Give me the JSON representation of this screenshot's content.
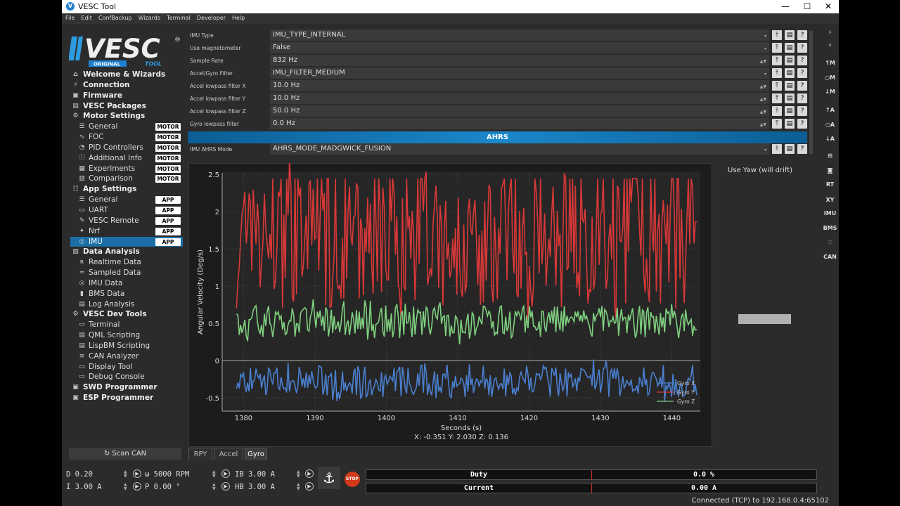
{
  "window": {
    "title": "VESC Tool",
    "logo_letter": "V",
    "minimize": "—",
    "maximize": "☐",
    "close": "✕"
  },
  "menu": [
    "File",
    "Edit",
    "ConfBackup",
    "Wizards",
    "Terminal",
    "Developer",
    "Help"
  ],
  "logo": {
    "text": "VESC",
    "reg": "®",
    "sub_left": "ORIGINAL",
    "sub_right": "TOOL"
  },
  "nav": [
    {
      "label": "Welcome & Wizards",
      "level": "top",
      "icon": "home-icon",
      "glyph": "⌂"
    },
    {
      "label": "Connection",
      "level": "top",
      "icon": "plug-icon",
      "glyph": "⚡"
    },
    {
      "label": "Firmware",
      "level": "top",
      "icon": "chip-icon",
      "glyph": "▣"
    },
    {
      "label": "VESC Packages",
      "level": "top",
      "icon": "package-icon",
      "glyph": "▤"
    },
    {
      "label": "Motor Settings",
      "level": "top",
      "icon": "motor-icon",
      "glyph": "⚙"
    },
    {
      "label": "General",
      "level": "sub",
      "icon": "sliders-icon",
      "glyph": "☰",
      "badge": "MOTOR"
    },
    {
      "label": "FOC",
      "level": "sub",
      "icon": "coil-icon",
      "glyph": "∿",
      "badge": "MOTOR"
    },
    {
      "label": "PID Controllers",
      "level": "sub",
      "icon": "gauge-icon",
      "glyph": "◔",
      "badge": "MOTOR"
    },
    {
      "label": "Additional Info",
      "level": "sub",
      "icon": "info-icon",
      "glyph": "ⓘ",
      "badge": "MOTOR"
    },
    {
      "label": "Experiments",
      "level": "sub",
      "icon": "flask-icon",
      "glyph": "▦",
      "badge": "MOTOR"
    },
    {
      "label": "Comparison",
      "level": "sub",
      "icon": "compare-icon",
      "glyph": "▥",
      "badge": "MOTOR"
    },
    {
      "label": "App Settings",
      "level": "top",
      "icon": "sliders-icon",
      "glyph": "☷"
    },
    {
      "label": "General",
      "level": "sub",
      "icon": "sliders-icon",
      "glyph": "☰",
      "badge": "APP"
    },
    {
      "label": "UART",
      "level": "sub",
      "icon": "uart-icon",
      "glyph": "▭",
      "badge": "APP"
    },
    {
      "label": "VESC Remote",
      "level": "sub",
      "icon": "remote-icon",
      "glyph": "✎",
      "badge": "APP"
    },
    {
      "label": "Nrf",
      "level": "sub",
      "icon": "wireless-icon",
      "glyph": "✦",
      "badge": "APP"
    },
    {
      "label": "IMU",
      "level": "sub",
      "icon": "imu-icon",
      "glyph": "◎",
      "badge": "APP",
      "selected": true
    },
    {
      "label": "Data Analysis",
      "level": "top",
      "icon": "chart-icon",
      "glyph": "▨"
    },
    {
      "label": "Realtime Data",
      "level": "sub",
      "icon": "realtime-icon",
      "glyph": "ʀ"
    },
    {
      "label": "Sampled Data",
      "level": "sub",
      "icon": "wave-icon",
      "glyph": "≈"
    },
    {
      "label": "IMU Data",
      "level": "sub",
      "icon": "imu-icon",
      "glyph": "◎"
    },
    {
      "label": "BMS Data",
      "level": "sub",
      "icon": "battery-icon",
      "glyph": "▮"
    },
    {
      "label": "Log Analysis",
      "level": "sub",
      "icon": "log-icon",
      "glyph": "▤"
    },
    {
      "label": "VESC Dev Tools",
      "level": "top",
      "icon": "tools-icon",
      "glyph": "⚙"
    },
    {
      "label": "Terminal",
      "level": "sub",
      "icon": "terminal-icon",
      "glyph": "▭"
    },
    {
      "label": "QML Scripting",
      "level": "sub",
      "icon": "script-icon",
      "glyph": "▤"
    },
    {
      "label": "LispBM Scripting",
      "level": "sub",
      "icon": "script-icon",
      "glyph": "▤"
    },
    {
      "label": "CAN Analyzer",
      "level": "sub",
      "icon": "can-icon",
      "glyph": "≡"
    },
    {
      "label": "Display Tool",
      "level": "sub",
      "icon": "display-icon",
      "glyph": "▭"
    },
    {
      "label": "Debug Console",
      "level": "sub",
      "icon": "console-icon",
      "glyph": "▭"
    },
    {
      "label": "SWD Programmer",
      "level": "top",
      "icon": "chip-icon",
      "glyph": "▣"
    },
    {
      "label": "ESP Programmer",
      "level": "top",
      "icon": "chip-icon",
      "glyph": "▣"
    }
  ],
  "scan_can": "↻ Scan CAN",
  "params": [
    {
      "label": "IMU Type",
      "value": "IMU_TYPE_INTERNAL",
      "kind": "combo"
    },
    {
      "label": "Use magnetometer",
      "value": "False",
      "kind": "combo"
    },
    {
      "label": "Sample Rate",
      "value": "832 Hz",
      "kind": "spin"
    },
    {
      "label": "Accel/Gyro Filter",
      "value": "IMU_FILTER_MEDIUM",
      "kind": "combo"
    },
    {
      "label": "Accel lowpass filter X",
      "value": "10.0 Hz",
      "kind": "spin"
    },
    {
      "label": "Accel lowpass filter Y",
      "value": "10.0 Hz",
      "kind": "spin"
    },
    {
      "label": "Accel lowpass filter Z",
      "value": "50.0 Hz",
      "kind": "spin"
    },
    {
      "label": "Gyro lowpass filter",
      "value": "0.0 Hz",
      "kind": "spin"
    }
  ],
  "section_header": "AHRS",
  "param_after": {
    "label": "IMU AHRS Mode",
    "value": "AHRS_MODE_MADGWICK_FUSION",
    "kind": "combo"
  },
  "param_buttons": [
    "⤒",
    "▤",
    "?"
  ],
  "use_yaw": "Use Yaw (will drift)",
  "tabs": [
    "RPY",
    "Accel",
    "Gyro"
  ],
  "active_tab": "Gyro",
  "chart_data": {
    "type": "line",
    "xlabel": "Seconds (s)",
    "ylabel": "Angular Velocity (Deg/s)",
    "xlim": [
      1377,
      1444
    ],
    "ylim": [
      -0.68,
      2.52
    ],
    "xticks": [
      1380,
      1390,
      1400,
      1410,
      1420,
      1430,
      1440
    ],
    "yticks": [
      -0.5,
      0,
      0.5,
      1,
      1.5,
      2,
      2.5
    ],
    "ytick_labels": [
      "-0.5",
      "0",
      "0.5",
      "1",
      "1.5",
      "2",
      "2.5"
    ],
    "grid": true,
    "legend_position": "bottom-right",
    "series": [
      {
        "name": "Gyro X",
        "color": "#4a7fcf",
        "base": -0.28,
        "amp": 0.22
      },
      {
        "name": "Gyro Y",
        "color": "#d93838",
        "base": 1.55,
        "amp": 0.85
      },
      {
        "name": "Gyro Z",
        "color": "#7fd07f",
        "base": 0.52,
        "amp": 0.22
      }
    ],
    "cursor_readout": "X:   -0.351  Y:    2.030  Z:    0.136"
  },
  "bottom": {
    "d": "D 0.20",
    "i": "I 3.00 A",
    "w": "ω 5000 RPM",
    "p": "P 0.00 °",
    "ib": "IB 3.00 A",
    "hb": "HB 3.00 A",
    "anchor": "⚓",
    "stop": "STOP",
    "duty_label": "Duty",
    "duty_value": "0.0 %",
    "current_label": "Current",
    "current_value": "0.00 A"
  },
  "right_toolbar": [
    "⚡",
    "⚡",
    "↑M",
    "○M",
    "↓M",
    "↑A",
    "○A",
    "↓A",
    "⊞",
    "◙",
    "RT",
    "XY",
    "IMU",
    "BMS",
    "♡",
    "CAN"
  ],
  "status": "Connected (TCP) to 192.168.0.4:65102"
}
